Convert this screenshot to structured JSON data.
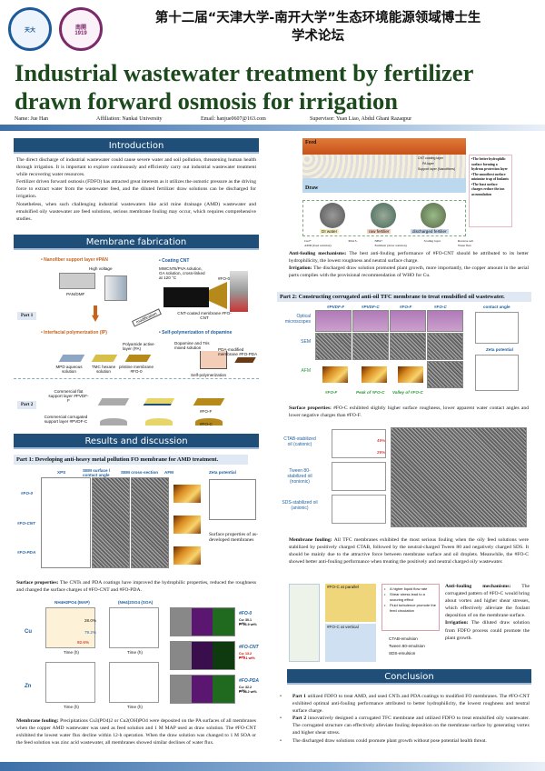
{
  "header": {
    "logo_left": "Tianjin University",
    "logo_right": "Nankai University 1919",
    "conference_line1": "第十二届“天津大学-南开大学”生态环境能源领域博士生",
    "conference_line2": "学术论坛",
    "title_line1": "Industrial wastewater treatment by fertilizer",
    "title_line2": "drawn forward osmosis for irrigation",
    "name": "Name: Jue Han",
    "affiliation": "Affiliation: Nankai University",
    "email": "Email: hanjue0607@163.com",
    "supervisor": "Supervisor: Yuan Liao, Abdul Ghani Razaqpur"
  },
  "introduction": {
    "heading": "Introduction",
    "p1": "The direct discharge of industrial wastewater could cause severe water and soil pollution, threatening human health through irrigation. It is important to explore continuously and efficiently carry out industrial wastewater treatment while recovering water resources.",
    "p2": "Fertilizer driven forward osmosis (FDFO) has attracted great interests as it utilizes the osmotic pressure as the driving force to extract water from the wastewater feed, and the diluted fertilizer draw solutions can be discharged for irrigation.",
    "p3": "Nonetheless, when such challenging industrial wastewaters like acid mine drainage (AMD) wastewater and emulsified oily wastewater are feed solutions, serious membrane fouling may occur, which requires comprehensive studies."
  },
  "fabrication": {
    "heading": "Membrane fabrication",
    "part1": "Part 1",
    "part2": "Part 2",
    "nanofiber": "• Nanofiber support layer #PAN",
    "coating": "• Coating CNT",
    "ip": "• Interfacial polymerization (IP)",
    "dopamine": "• Self-polymerization of dopamine",
    "high_voltage": "High voltage",
    "pan_dmf": "PAN/DMF",
    "mwcnt": "MWCNTs/PVA solution, GA solution, cross-linked at 120 °C",
    "fo0": "#FO-0",
    "cnt_membrane": "CNT-coated membrane #FO-CNT",
    "modification": "modification",
    "mpd": "MPD aqueous solution",
    "tmc": "TMC hexane solution",
    "pristine": "pristine membrane #FO-0",
    "pa": "Polyamide active layer (PA)",
    "dopa_sol": "Dopamine and Tris mixed solution",
    "pda": "PDA-modified membrane #FO-PDA",
    "selfpoly": "Self-polymerization",
    "flat": "Commercial flat support layer #PVDF-F",
    "corr": "Commercial corrugated support layer #PVDF-C",
    "fof": "#FO-F",
    "foc": "#FO-C",
    "ip_label": "IP"
  },
  "results": {
    "heading": "Results and discussion",
    "part1_title": "Part 1: Developing anti-heavy metal pollution FO membrane for AMD treatment.",
    "fig1_cols": [
      "XPS",
      "SEM surface / contact angle",
      "SEM cross-section",
      "AFM",
      "Zeta potential"
    ],
    "fig1_rows": [
      "#FO-0",
      "#FO-CNT",
      "#FO-PDA"
    ],
    "fig1_caption": "Surface properties of as-developed membranes",
    "surface1_label": "Surface properties:",
    "surface1_text": " The CNTs and PDA coatings have improved the hydrophilic properties, reduced the roughness and changed the surface charges of #FO-CNT and #FO-PDA.",
    "flux_titles": [
      "NH4H2PO4 (MAP)",
      "(NH4)2SO4 (SOA)"
    ],
    "flux_rows": [
      "Cu",
      "Zn"
    ],
    "flux_labels": [
      "28.0%",
      "79.2%",
      "92.6%"
    ],
    "xaxis": "Time (h)",
    "eds": [
      {
        "name": "#FO-0",
        "cu": "Cu: 30.1 wt%",
        "p": "P: 16.9 wt%"
      },
      {
        "name": "#FO-CNT",
        "cu": "Cu: 13.2 wt%",
        "p": "P: 5.1 wt%"
      },
      {
        "name": "#FO-PDA",
        "cu": "Cu: 32.2 wt%",
        "p": "P: 18.2 wt%"
      }
    ],
    "fouling1_label": "Membrane fouling:",
    "fouling1_text": " Precipitations Cu3(PO4)2 or Cu2(OH)PO4 were deposited on the PA surfaces of all membranes when the copper AMD wastewater was used as feed solution and 1 M MAP used as draw solution. The #FO-CNT exhibited the lowest water flux decline within 12-h operation. When the draw solution was changed to 1 M SOA or the feed solution was zinc acid wastewater, all membranes showed similar declines of water flux.",
    "mech_feed": "Feed",
    "mech_draw": "Draw",
    "mech_layers": [
      "CNT coating layer",
      "PA layer",
      "Support layer (Nanofibers)"
    ],
    "plants": [
      "DI water",
      "raw fertilier",
      "discharged fertilier"
    ],
    "mech_notes": [
      "•The better hydrophilic surface forming a hydrous protection layer",
      "•The smoothest surface minimize trap of foulants",
      "•The least surface charges reduce the ion accumulation"
    ],
    "legend": [
      "Cu2+",
      "PO4 3-",
      "NH4+",
      "Scaling layer",
      "Reverse salt",
      "AMD (feed solution)",
      "Fertilizer (draw solution)",
      "Water flux"
    ],
    "anti1_label": "Anti-fouling mechanisms:",
    "anti1_text": " The best anti-fouling performance of #FO-CNT should be attributed to its better hydrophilicity, the lowest roughness and neutral surface charge.",
    "irr1_label": "Irrigation:",
    "irr1_text": " The discharged draw solution promoted plant growth, more importantly, the copper amount in the aerial parts complies with the provisional recommendation of WHO for Cu.",
    "part2_title": "Part 2: Constructing corrugated anti-oil TFC membrane to treat emulsified oil wastewater.",
    "fig2_cols": [
      "#PVDF-F",
      "#PVDF-C",
      "#FO-F",
      "#FO-C"
    ],
    "fig2_rows": [
      "Optical microscopes",
      "SEM",
      "AFM"
    ],
    "fig2_afm": [
      "#FO-F",
      "Peak of #FO-C",
      "Valley of #FO-C"
    ],
    "contact_angle": "contact angle",
    "zeta": "Zeta potential",
    "surface2_label": "Surface properties:",
    "surface2_text": " #FO-C exhibited slightly higher surface roughness, lower apparent water contact angles and lower negative charges than #FO-F.",
    "oil_rows": [
      "CTAB-stabilized oil (cationic)",
      "Tween 80-stabilized oil (nonionic)",
      "SDS-stabilized oil (anionic)"
    ],
    "oil_labels": [
      "49%",
      "29%"
    ],
    "fouling2_label": "Membrane fouling:",
    "fouling2_text": " All TFC membranes exhibited the most serious fouling when the oily feed solutions were stabilized by positively charged CTAB, followed by the neutral-charged Tween 80 and negatively charged SDS. It should be mainly due to the attractive force between membrane surface and oil droplets. Meanwhile, the #FO-C showed better anti-fouling performance when treating the positively and neutral charged oily wastewater.",
    "vortex_notes": [
      "A higher liquid flow rate",
      "Shear stress lead to a scouring effect",
      "Fluid turbulence promote the feed circulation"
    ],
    "emulsions": [
      "CTAB-emulsion",
      "Tween 80-emulsion",
      "SDS-emulsion"
    ],
    "parallel": "#FO-C at parallel",
    "vertical": "#FO-C at vertical",
    "anti2_label": "Anti-fouling mechanisms:",
    "anti2_text": " The corrugated pattern of #FO-C would bring about vortex and higher shear stresses, which effectively alleviate the foulant deposition of on the membrane surface.",
    "irr2_label": "Irrigation:",
    "irr2_text": " The diluted draw solution from FDFO process could promote the plant growth."
  },
  "conclusion": {
    "heading": "Conclusion",
    "items": [
      {
        "bold": "Part 1",
        "text": " utilized FDFO to treat AMD, and used CNTs and PDA coatings to modified FO membranes. The #FO-CNT exhibited optimal anti-fouling performance attributed to better hydrophilicity, the lowest roughness and neutral surface charge."
      },
      {
        "bold": "Part 2",
        "text": " innovatively designed a corrugated TFC membrane and utilized FDFO to treat emulsified oily wastewater. The corrugated structure can effectively alleviate fouling deposition on the membrane surface by generating vortex and higher shear stress."
      },
      {
        "bold": "",
        "text": "The discharged draw solutions could promote plant growth without pose potential health threat."
      }
    ]
  },
  "colors": {
    "section": "#1f4e79",
    "title": "#1c4a1c",
    "accent_orange": "#c8621a",
    "accent_blue": "#1f5f9f"
  }
}
